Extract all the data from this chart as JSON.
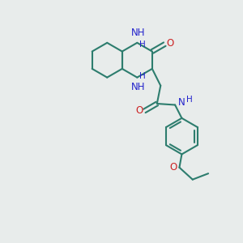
{
  "bg_color": "#e8eceb",
  "bond_color": "#2d7d6e",
  "n_color": "#2222cc",
  "o_color": "#cc2222",
  "line_width": 1.5,
  "font_size": 8.5,
  "fig_size": [
    3.0,
    3.0
  ],
  "dpi": 100,
  "xlim": [
    0,
    10
  ],
  "ylim": [
    0,
    10
  ]
}
